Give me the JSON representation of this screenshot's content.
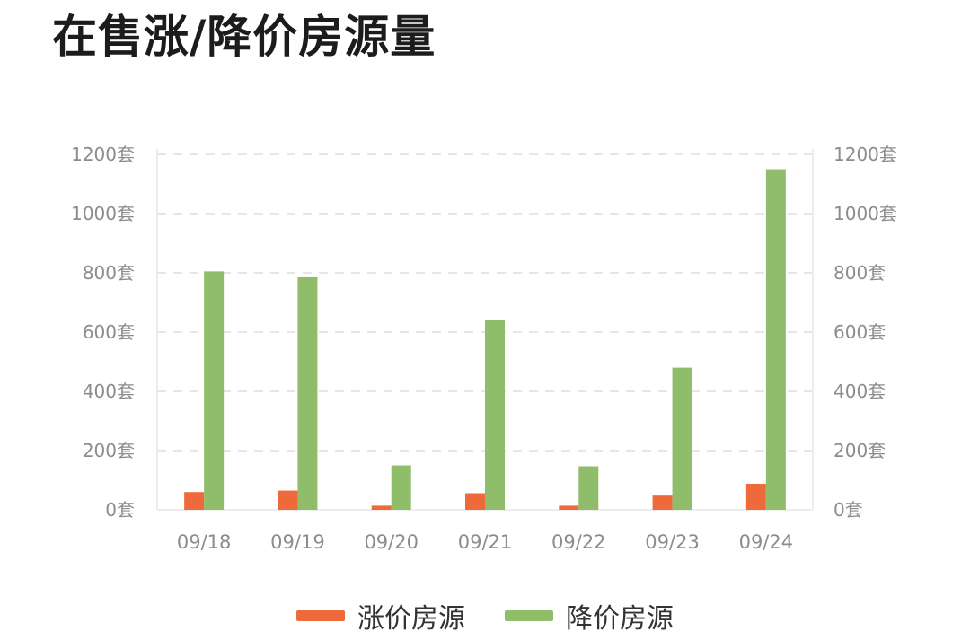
{
  "title": "在售涨/降价房源量",
  "colors": {
    "rise": "#ee6a3a",
    "fall": "#8fbd6a",
    "grid": "#e6e6e6",
    "axis": "#ededed",
    "tick_text": "#8c8c8c"
  },
  "chart_data": {
    "type": "bar",
    "title": "在售涨/降价房源量",
    "categories": [
      "09/18",
      "09/19",
      "09/20",
      "09/21",
      "09/22",
      "09/23",
      "09/24"
    ],
    "series": [
      {
        "name": "涨价房源",
        "values": [
          60,
          65,
          14,
          56,
          14,
          48,
          88
        ]
      },
      {
        "name": "降价房源",
        "values": [
          805,
          785,
          150,
          640,
          147,
          480,
          1150
        ]
      }
    ],
    "y_ticks": [
      "1200套",
      "1000套",
      "800套",
      "600套",
      "400套",
      "200套",
      "0套"
    ],
    "y_ticks_right": [
      "1200套",
      "1000套",
      "800套",
      "600套",
      "400套",
      "200套",
      "0套"
    ],
    "ylim": [
      0,
      1200
    ],
    "grid": true,
    "legend_position": "bottom-center"
  },
  "legend": [
    {
      "label": "涨价房源"
    },
    {
      "label": "降价房源"
    }
  ]
}
